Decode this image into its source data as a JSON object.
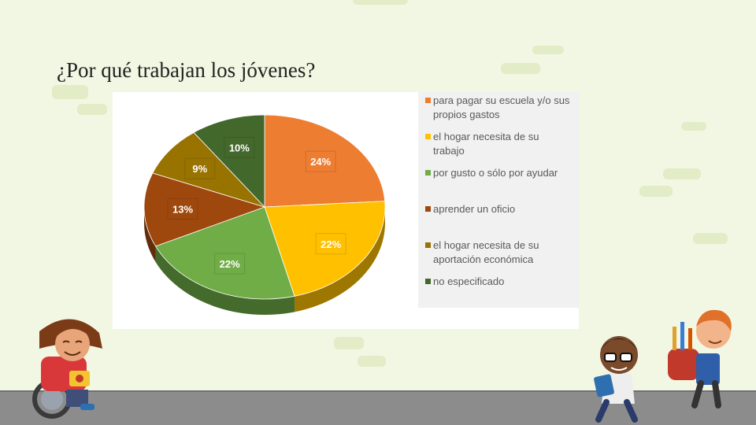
{
  "slide": {
    "title": "¿Por qué trabajan los jóvenes?"
  },
  "colors": {
    "background": "#f2f7e3",
    "slices": [
      "#ed7d31",
      "#ffc000",
      "#70ad47",
      "#9e480e",
      "#997300",
      "#43682b"
    ]
  },
  "chart_data": {
    "type": "pie",
    "title": "",
    "categories": [
      "para pagar su escuela y/o sus propios gastos",
      "el hogar necesita de su trabajo",
      "por gusto o sólo por ayudar",
      "aprender un oficio",
      "el hogar necesita de su aportación económica",
      "no especificado"
    ],
    "legend_lines": [
      [
        "para pagar su escuela y/o sus",
        "propios gastos"
      ],
      [
        "el hogar necesita de su",
        "trabajo"
      ],
      [
        "por gusto o sólo por ayudar"
      ],
      [
        "aprender un oficio"
      ],
      [
        "el hogar necesita de su",
        "aportación económica"
      ],
      [
        "no especificado"
      ]
    ],
    "values": [
      24,
      22,
      22,
      13,
      9,
      10
    ],
    "labels": [
      "24%",
      "22%",
      "22%",
      "13%",
      "9%",
      "10%"
    ],
    "legend_position": "right",
    "style": "3d"
  }
}
